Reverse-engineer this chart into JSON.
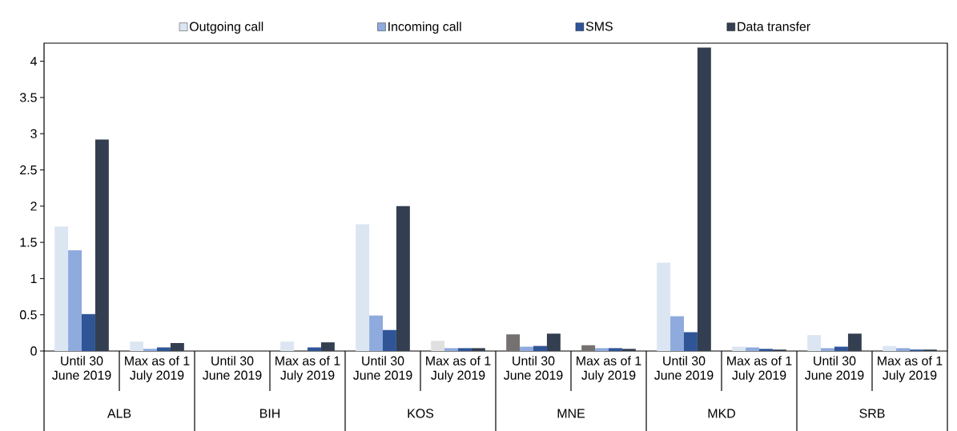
{
  "chart_data": {
    "type": "bar",
    "categories": [
      "Until 30 June 2019",
      "Max as of 1 July 2019",
      "Until 30 June 2019",
      "Max as of 1 July 2019",
      "Until 30 June 2019",
      "Max as of 1 July 2019",
      "Until 30 June 2019",
      "Max as of 1 July 2019",
      "Until 30 June 2019",
      "Max as of 1 July 2019",
      "Until 30 June 2019",
      "Max as of 1 July 2019"
    ],
    "series": [
      {
        "name": "Outgoing call",
        "color": "#dce6f2",
        "colors": [
          "#dce6f2",
          "#dce6f2",
          "#dce6f2",
          "#dce6f2",
          "#dce6f2",
          "#e0e0e0",
          "#767171",
          "#767171",
          "#dce6f2",
          "#dce6f2",
          "#dce6f2",
          "#dce6f2"
        ],
        "values": [
          1.72,
          0.13,
          null,
          0.13,
          1.75,
          0.14,
          0.23,
          0.08,
          1.22,
          0.06,
          0.22,
          0.07
        ]
      },
      {
        "name": "Incoming call",
        "color": "#8faadc",
        "values": [
          1.39,
          0.03,
          null,
          null,
          0.49,
          0.04,
          0.06,
          0.04,
          0.48,
          0.05,
          0.04,
          0.04
        ]
      },
      {
        "name": "SMS",
        "color": "#2f5597",
        "values": [
          0.51,
          0.05,
          null,
          0.05,
          0.29,
          0.04,
          0.07,
          0.04,
          0.26,
          0.03,
          0.06,
          0.02
        ]
      },
      {
        "name": "Data transfer",
        "color": "#333f50",
        "values": [
          2.92,
          0.11,
          null,
          0.12,
          2.0,
          0.04,
          0.24,
          0.03,
          4.19,
          0.02,
          0.24,
          0.02
        ]
      }
    ],
    "ylim": [
      0,
      4.25
    ],
    "yticks": [
      0,
      0.5,
      1,
      1.5,
      2,
      2.5,
      3,
      3.5,
      4
    ],
    "legend": "top",
    "annotations": [
      "ALB",
      "BIH",
      "KOS",
      "MNE",
      "MKD",
      "SRB"
    ]
  }
}
